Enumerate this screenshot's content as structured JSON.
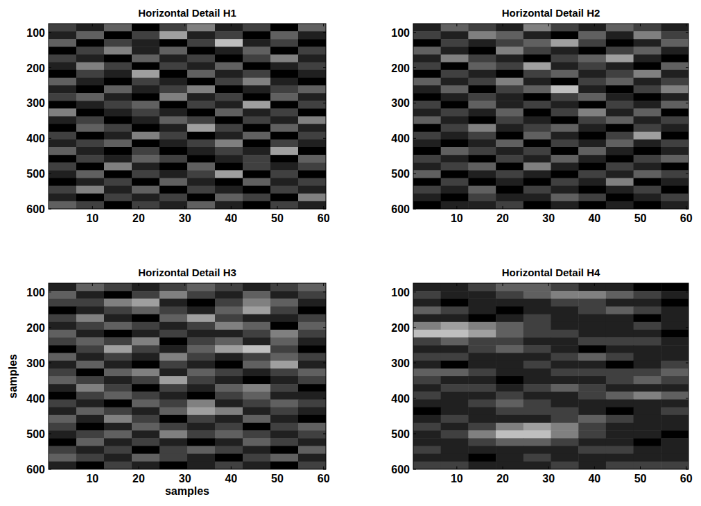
{
  "chart_data": [
    {
      "type": "heatmap",
      "title": "Horizontal Detail H1",
      "xlim": [
        0.5,
        60.5
      ],
      "ylim": [
        600,
        75
      ],
      "xticks": [
        10,
        20,
        30,
        40,
        50,
        60
      ],
      "yticks": [
        100,
        200,
        300,
        400,
        500,
        600
      ],
      "zlim": [
        0,
        8
      ],
      "cells": [
        [
          2,
          1,
          3,
          0,
          2,
          4,
          1,
          2,
          0,
          3
        ],
        [
          1,
          3,
          0,
          2,
          5,
          1,
          2,
          0,
          3,
          1
        ],
        [
          3,
          0,
          2,
          1,
          0,
          2,
          6,
          1,
          2,
          0
        ],
        [
          0,
          2,
          4,
          1,
          3,
          0,
          1,
          3,
          0,
          2
        ],
        [
          2,
          1,
          0,
          3,
          1,
          2,
          0,
          2,
          4,
          1
        ],
        [
          1,
          4,
          2,
          0,
          2,
          1,
          3,
          0,
          1,
          2
        ],
        [
          0,
          2,
          1,
          5,
          0,
          3,
          1,
          2,
          0,
          1
        ],
        [
          3,
          1,
          0,
          2,
          1,
          0,
          2,
          4,
          1,
          0
        ],
        [
          1,
          0,
          3,
          1,
          2,
          4,
          0,
          1,
          2,
          3
        ],
        [
          2,
          3,
          1,
          0,
          4,
          1,
          2,
          0,
          3,
          1
        ],
        [
          0,
          1,
          2,
          3,
          0,
          2,
          1,
          5,
          0,
          2
        ],
        [
          4,
          0,
          1,
          2,
          1,
          0,
          3,
          1,
          2,
          0
        ],
        [
          1,
          2,
          0,
          1,
          3,
          2,
          0,
          2,
          1,
          4
        ],
        [
          0,
          3,
          2,
          0,
          1,
          5,
          2,
          0,
          3,
          1
        ],
        [
          2,
          0,
          1,
          4,
          2,
          0,
          1,
          3,
          0,
          2
        ],
        [
          1,
          2,
          3,
          0,
          1,
          2,
          4,
          0,
          2,
          1
        ],
        [
          3,
          1,
          0,
          2,
          0,
          1,
          2,
          1,
          5,
          0
        ],
        [
          0,
          2,
          1,
          3,
          2,
          0,
          1,
          2,
          0,
          3
        ],
        [
          2,
          0,
          4,
          1,
          0,
          3,
          0,
          2,
          1,
          2
        ],
        [
          1,
          3,
          0,
          2,
          1,
          2,
          5,
          0,
          2,
          0
        ],
        [
          0,
          1,
          2,
          0,
          3,
          1,
          0,
          3,
          1,
          2
        ],
        [
          2,
          4,
          1,
          3,
          0,
          2,
          1,
          0,
          2,
          1
        ],
        [
          1,
          0,
          2,
          1,
          2,
          0,
          3,
          2,
          0,
          4
        ],
        [
          3,
          2,
          0,
          2,
          1,
          3,
          1,
          0,
          2,
          1
        ]
      ]
    },
    {
      "type": "heatmap",
      "title": "Horizontal Detail H2",
      "xlim": [
        0.5,
        60.5
      ],
      "ylim": [
        600,
        75
      ],
      "xticks": [
        10,
        20,
        30,
        40,
        50,
        60
      ],
      "yticks": [
        100,
        200,
        300,
        400,
        500,
        600
      ],
      "zlim": [
        0,
        8
      ],
      "cells": [
        [
          1,
          3,
          2,
          1,
          4,
          2,
          1,
          3,
          2,
          1
        ],
        [
          2,
          1,
          4,
          3,
          1,
          0,
          3,
          1,
          4,
          2
        ],
        [
          0,
          2,
          1,
          2,
          3,
          5,
          2,
          0,
          1,
          3
        ],
        [
          3,
          1,
          0,
          4,
          2,
          1,
          0,
          2,
          3,
          1
        ],
        [
          1,
          4,
          2,
          1,
          0,
          2,
          3,
          5,
          1,
          0
        ],
        [
          2,
          0,
          3,
          2,
          5,
          1,
          2,
          1,
          0,
          3
        ],
        [
          0,
          2,
          1,
          0,
          2,
          3,
          1,
          2,
          4,
          1
        ],
        [
          3,
          1,
          2,
          4,
          1,
          0,
          2,
          3,
          1,
          2
        ],
        [
          1,
          3,
          0,
          2,
          3,
          6,
          1,
          0,
          2,
          4
        ],
        [
          0,
          1,
          2,
          1,
          0,
          2,
          3,
          1,
          0,
          1
        ],
        [
          2,
          0,
          3,
          1,
          2,
          1,
          0,
          2,
          1,
          3
        ],
        [
          1,
          2,
          1,
          3,
          0,
          2,
          4,
          1,
          3,
          0
        ],
        [
          3,
          1,
          0,
          2,
          1,
          0,
          2,
          3,
          1,
          2
        ],
        [
          0,
          2,
          4,
          1,
          2,
          3,
          1,
          0,
          2,
          1
        ],
        [
          2,
          1,
          2,
          0,
          3,
          1,
          0,
          2,
          5,
          0
        ],
        [
          1,
          0,
          1,
          3,
          0,
          2,
          1,
          3,
          1,
          2
        ],
        [
          0,
          3,
          2,
          1,
          2,
          0,
          3,
          1,
          0,
          1
        ],
        [
          2,
          1,
          0,
          2,
          1,
          3,
          1,
          0,
          2,
          3
        ],
        [
          1,
          2,
          3,
          0,
          4,
          1,
          0,
          2,
          1,
          0
        ],
        [
          3,
          0,
          1,
          2,
          1,
          0,
          2,
          1,
          3,
          2
        ],
        [
          0,
          2,
          0,
          1,
          0,
          2,
          1,
          4,
          0,
          1
        ],
        [
          2,
          1,
          3,
          0,
          2,
          1,
          0,
          1,
          2,
          0
        ],
        [
          1,
          0,
          2,
          1,
          1,
          3,
          2,
          0,
          1,
          2
        ],
        [
          0,
          1,
          1,
          2,
          0,
          1,
          0,
          1,
          0,
          1
        ]
      ]
    },
    {
      "type": "heatmap",
      "title": "Horizontal Detail H3",
      "xlim": [
        0.5,
        60.5
      ],
      "ylim": [
        600,
        75
      ],
      "xticks": [
        10,
        20,
        30,
        40,
        50,
        60
      ],
      "yticks": [
        100,
        200,
        300,
        400,
        500,
        600
      ],
      "xlabel": "samples",
      "ylabel": "samples",
      "zlim": [
        0,
        8
      ],
      "cells": [
        [
          1,
          3,
          2,
          1,
          2,
          3,
          2,
          1,
          2,
          3
        ],
        [
          3,
          1,
          0,
          2,
          4,
          2,
          1,
          3,
          1,
          2
        ],
        [
          2,
          2,
          4,
          5,
          1,
          0,
          2,
          4,
          3,
          1
        ],
        [
          0,
          1,
          2,
          3,
          2,
          1,
          3,
          5,
          2,
          0
        ],
        [
          2,
          4,
          1,
          0,
          3,
          5,
          2,
          1,
          1,
          2
        ],
        [
          1,
          2,
          3,
          2,
          1,
          2,
          4,
          3,
          0,
          3
        ],
        [
          3,
          1,
          0,
          1,
          2,
          1,
          1,
          2,
          4,
          2
        ],
        [
          2,
          3,
          2,
          4,
          0,
          2,
          3,
          1,
          3,
          1
        ],
        [
          0,
          2,
          5,
          2,
          1,
          3,
          5,
          6,
          2,
          0
        ],
        [
          3,
          1,
          2,
          1,
          4,
          2,
          1,
          2,
          3,
          2
        ],
        [
          1,
          3,
          1,
          0,
          2,
          1,
          0,
          3,
          5,
          1
        ],
        [
          2,
          0,
          3,
          4,
          1,
          3,
          2,
          1,
          2,
          3
        ],
        [
          3,
          2,
          1,
          2,
          5,
          2,
          1,
          0,
          1,
          2
        ],
        [
          1,
          4,
          2,
          0,
          2,
          1,
          3,
          4,
          2,
          0
        ],
        [
          0,
          2,
          3,
          2,
          1,
          0,
          2,
          3,
          1,
          1
        ],
        [
          2,
          1,
          0,
          3,
          2,
          4,
          1,
          2,
          3,
          2
        ],
        [
          1,
          3,
          2,
          1,
          3,
          5,
          4,
          1,
          2,
          1
        ],
        [
          3,
          1,
          4,
          2,
          0,
          2,
          1,
          3,
          1,
          0
        ],
        [
          2,
          0,
          1,
          3,
          2,
          1,
          2,
          0,
          2,
          3
        ],
        [
          1,
          2,
          3,
          1,
          4,
          2,
          3,
          2,
          1,
          2
        ],
        [
          0,
          3,
          1,
          2,
          1,
          0,
          1,
          3,
          2,
          1
        ],
        [
          2,
          1,
          2,
          0,
          2,
          3,
          2,
          1,
          0,
          3
        ],
        [
          3,
          2,
          1,
          3,
          2,
          1,
          0,
          2,
          3,
          1
        ],
        [
          1,
          0,
          2,
          1,
          0,
          1,
          2,
          1,
          0,
          2
        ]
      ]
    },
    {
      "type": "heatmap",
      "title": "Horizontal Detail H4",
      "xlim": [
        0.5,
        60.5
      ],
      "ylim": [
        600,
        75
      ],
      "xticks": [
        10,
        20,
        30,
        40,
        50,
        60
      ],
      "yticks": [
        100,
        200,
        300,
        400,
        500,
        600
      ],
      "zlim": [
        0,
        8
      ],
      "cells": [
        [
          1,
          1,
          2,
          3,
          3,
          2,
          1,
          1,
          0,
          0
        ],
        [
          2,
          1,
          1,
          2,
          3,
          4,
          4,
          3,
          2,
          1
        ],
        [
          1,
          0,
          1,
          1,
          1,
          2,
          2,
          1,
          1,
          0
        ],
        [
          3,
          2,
          1,
          0,
          1,
          1,
          2,
          3,
          2,
          1
        ],
        [
          1,
          1,
          0,
          1,
          2,
          1,
          1,
          1,
          0,
          1
        ],
        [
          4,
          5,
          4,
          3,
          2,
          1,
          1,
          1,
          2,
          1
        ],
        [
          6,
          6,
          5,
          3,
          2,
          2,
          1,
          1,
          1,
          0
        ],
        [
          2,
          3,
          2,
          2,
          1,
          1,
          2,
          2,
          2,
          1
        ],
        [
          1,
          1,
          2,
          3,
          2,
          1,
          0,
          1,
          1,
          1
        ],
        [
          2,
          2,
          1,
          1,
          1,
          2,
          3,
          2,
          1,
          1
        ],
        [
          1,
          0,
          1,
          1,
          2,
          1,
          1,
          0,
          1,
          2
        ],
        [
          3,
          3,
          2,
          1,
          1,
          2,
          2,
          2,
          2,
          3
        ],
        [
          2,
          1,
          1,
          0,
          1,
          1,
          1,
          2,
          3,
          2
        ],
        [
          1,
          2,
          2,
          1,
          2,
          3,
          2,
          1,
          1,
          1
        ],
        [
          2,
          1,
          1,
          2,
          1,
          1,
          2,
          3,
          4,
          3
        ],
        [
          1,
          1,
          2,
          3,
          2,
          1,
          1,
          1,
          1,
          1
        ],
        [
          0,
          1,
          1,
          2,
          2,
          2,
          1,
          0,
          1,
          2
        ],
        [
          1,
          2,
          1,
          1,
          1,
          2,
          3,
          2,
          1,
          1
        ],
        [
          2,
          1,
          2,
          4,
          5,
          4,
          2,
          1,
          1,
          1
        ],
        [
          1,
          2,
          4,
          6,
          6,
          4,
          2,
          1,
          1,
          0
        ],
        [
          1,
          1,
          2,
          3,
          3,
          2,
          1,
          1,
          0,
          1
        ],
        [
          2,
          1,
          1,
          1,
          1,
          1,
          2,
          2,
          1,
          1
        ],
        [
          1,
          1,
          0,
          1,
          2,
          1,
          1,
          1,
          1,
          1
        ],
        [
          2,
          2,
          1,
          1,
          1,
          2,
          1,
          2,
          2,
          2
        ]
      ]
    }
  ]
}
